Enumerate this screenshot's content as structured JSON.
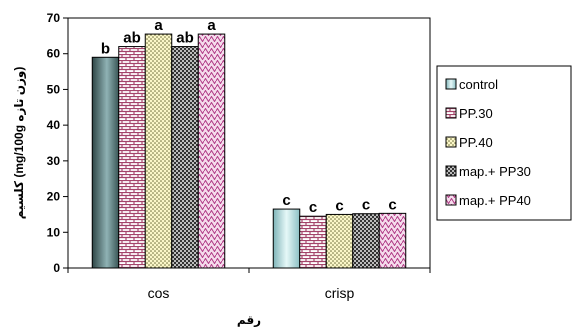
{
  "chart_data": {
    "type": "bar",
    "categories": [
      "cos",
      "crisp"
    ],
    "xlabel": "رقم",
    "ylabel": "کلسیم (mg/100g وزن تازه)",
    "ylim": [
      0,
      70
    ],
    "yticks": [
      0,
      10,
      20,
      30,
      40,
      50,
      60,
      70
    ],
    "grid": false,
    "legend_position": "right",
    "series": [
      {
        "name": "control",
        "values": [
          59,
          16.5
        ],
        "letters": [
          "b",
          "c"
        ],
        "color": "#4f6e70",
        "pattern": "solid"
      },
      {
        "name": "PP.30",
        "values": [
          62,
          14.5
        ],
        "letters": [
          "ab",
          "c"
        ],
        "color": "#a4446a",
        "pattern": "brick"
      },
      {
        "name": "PP.40",
        "values": [
          65.5,
          15
        ],
        "letters": [
          "a",
          "c"
        ],
        "color": "#fbf7c8",
        "pattern": "dots"
      },
      {
        "name": "map.+ PP30",
        "values": [
          62,
          15.2
        ],
        "letters": [
          "ab",
          "c"
        ],
        "color": "#5f5f5f",
        "pattern": "check"
      },
      {
        "name": "map.+ PP40",
        "values": [
          65.5,
          15.3
        ],
        "letters": [
          "a",
          "c"
        ],
        "color": "#d85aa4",
        "pattern": "zigzag"
      }
    ]
  }
}
